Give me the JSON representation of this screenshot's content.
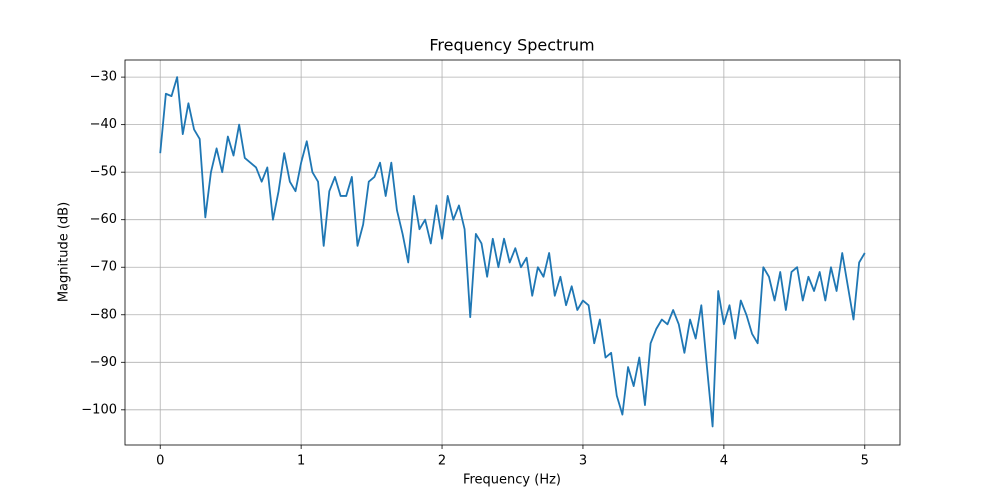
{
  "chart_data": {
    "type": "line",
    "title": "Frequency Spectrum",
    "x_label": "Frequency (Hz)",
    "y_label": "Magnitude (dB)",
    "color": "#1f77b4",
    "grid": true,
    "xlim": [
      -0.25,
      5.25
    ],
    "ylim": [
      -107.4,
      -26.4
    ],
    "xticks": [
      0,
      1,
      2,
      3,
      4,
      5
    ],
    "yticks": [
      {
        "value": -100,
        "label": "−100"
      },
      {
        "value": -90,
        "label": "−90"
      },
      {
        "value": -80,
        "label": "−80"
      },
      {
        "value": -70,
        "label": "−70"
      },
      {
        "value": -60,
        "label": "−60"
      },
      {
        "value": -50,
        "label": "−50"
      },
      {
        "value": -40,
        "label": "−40"
      },
      {
        "value": -30,
        "label": "−30"
      }
    ],
    "x": [
      0,
      0.04,
      0.08,
      0.12,
      0.16,
      0.2,
      0.24,
      0.28,
      0.32,
      0.36,
      0.4,
      0.44,
      0.48,
      0.52,
      0.56,
      0.6,
      0.64,
      0.68,
      0.72,
      0.76,
      0.8,
      0.84,
      0.88,
      0.92,
      0.96,
      1.0,
      1.04,
      1.08,
      1.12,
      1.16,
      1.2,
      1.24,
      1.28,
      1.32,
      1.36,
      1.4,
      1.44,
      1.48,
      1.52,
      1.56,
      1.6,
      1.64,
      1.68,
      1.72,
      1.76,
      1.8,
      1.84,
      1.88,
      1.92,
      1.96,
      2.0,
      2.04,
      2.08,
      2.12,
      2.16,
      2.2,
      2.24,
      2.28,
      2.32,
      2.36,
      2.4,
      2.44,
      2.48,
      2.52,
      2.56,
      2.6,
      2.64,
      2.68,
      2.72,
      2.76,
      2.8,
      2.84,
      2.88,
      2.92,
      2.96,
      3.0,
      3.04,
      3.08,
      3.12,
      3.16,
      3.2,
      3.24,
      3.28,
      3.32,
      3.36,
      3.4,
      3.44,
      3.48,
      3.52,
      3.56,
      3.6,
      3.64,
      3.68,
      3.72,
      3.76,
      3.8,
      3.84,
      3.88,
      3.92,
      3.96,
      4.0,
      4.04,
      4.08,
      4.12,
      4.16,
      4.2,
      4.24,
      4.28,
      4.32,
      4.36,
      4.4,
      4.44,
      4.48,
      4.52,
      4.56,
      4.6,
      4.64,
      4.68,
      4.72,
      4.76,
      4.8,
      4.84,
      4.88,
      4.92,
      4.96,
      5.0
    ],
    "values": [
      -46,
      -33.5,
      -34,
      -30,
      -42,
      -35.5,
      -41,
      -43,
      -59.5,
      -50,
      -45,
      -50,
      -42.5,
      -46.5,
      -40,
      -47,
      -48,
      -49,
      -52,
      -49,
      -60,
      -54,
      -46,
      -52,
      -54,
      -48,
      -43.5,
      -50,
      -52,
      -65.5,
      -54,
      -51,
      -55,
      -55,
      -51,
      -65.5,
      -61,
      -52,
      -51,
      -48,
      -55,
      -48,
      -58,
      -63,
      -69,
      -55,
      -62,
      -60,
      -65,
      -57,
      -64,
      -55,
      -60,
      -57,
      -62,
      -80.5,
      -63,
      -65,
      -72,
      -64,
      -70,
      -64,
      -69,
      -66,
      -70,
      -68,
      -76,
      -70,
      -72,
      -67,
      -76,
      -72,
      -78,
      -74,
      -79,
      -77,
      -78,
      -86,
      -81,
      -89,
      -88,
      -97,
      -101,
      -91,
      -95,
      -89,
      -99,
      -86,
      -83,
      -81,
      -82,
      -79,
      -82,
      -88,
      -81,
      -85,
      -78,
      -91,
      -103.5,
      -75,
      -82,
      -78,
      -85,
      -77,
      -80,
      -84,
      -86,
      -70,
      -72,
      -77,
      -71,
      -79,
      -71,
      -70,
      -77,
      -72,
      -75,
      -71,
      -77,
      -70,
      -75,
      -67,
      -74,
      -81,
      -69,
      -67
    ]
  }
}
